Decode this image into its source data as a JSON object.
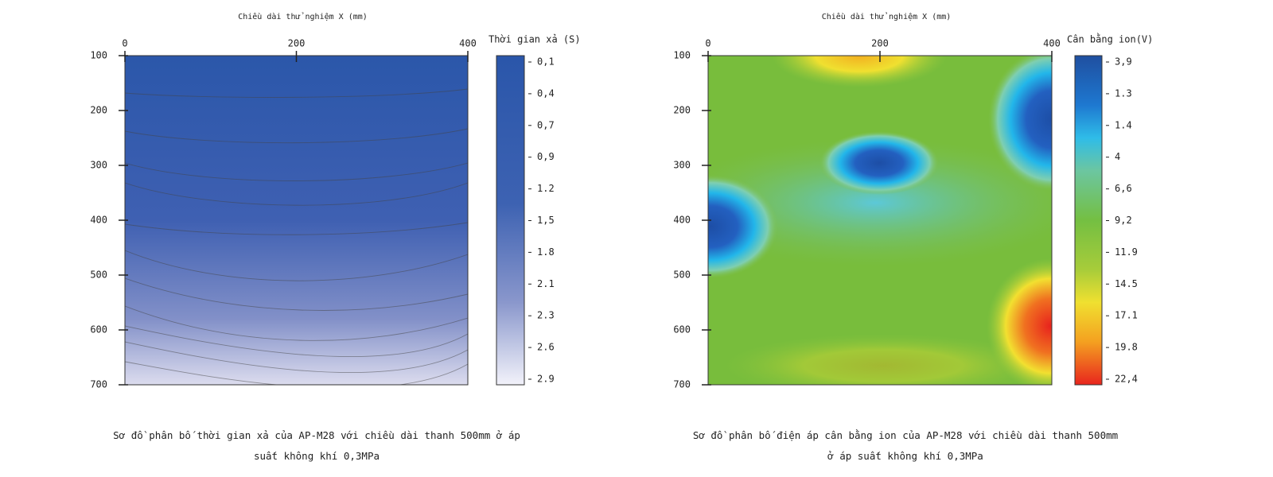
{
  "chart_data": [
    {
      "type": "contour",
      "title": "Chiều dài thử nghiệm X (mm)",
      "xlim": [
        0,
        400
      ],
      "xticks": [
        0,
        200,
        400
      ],
      "ylim": [
        100,
        700
      ],
      "yticks": [
        100,
        200,
        300,
        400,
        500,
        600,
        700
      ],
      "colorbar_title": "Thời gian xả (S)",
      "colorbar_ticks": [
        {
          "value": 0.1,
          "label": "0,1"
        },
        {
          "value": 0.4,
          "label": "0,4"
        },
        {
          "value": 0.7,
          "label": "0,7"
        },
        {
          "value": 0.9,
          "label": "0,9"
        },
        {
          "value": 1.2,
          "label": "1.2"
        },
        {
          "value": 1.5,
          "label": "1,5"
        },
        {
          "value": 1.8,
          "label": "1.8"
        },
        {
          "value": 2.1,
          "label": "2.1"
        },
        {
          "value": 2.3,
          "label": "2.3"
        },
        {
          "value": 2.6,
          "label": "2.6"
        },
        {
          "value": 2.9,
          "label": "2.9"
        }
      ],
      "caption": "Sơ đồ phân bố thời gian xả của AP-M28 với chiều dài thanh 500mm ở áp suất không khí 0,3MPa"
    },
    {
      "type": "contour",
      "title": "Chiều dài thử nghiệm X (mm)",
      "xlim": [
        0,
        400
      ],
      "xticks": [
        0,
        200,
        400
      ],
      "ylim": [
        100,
        700
      ],
      "yticks": [
        100,
        200,
        300,
        400,
        500,
        600,
        700
      ],
      "colorbar_title": "Cân bằng ion(V)",
      "colorbar_ticks": [
        {
          "value": 3.9,
          "label": "3,9"
        },
        1.3,
        1.4,
        4.0,
        {
          "value": 6.6,
          "label": "6,6"
        },
        {
          "value": 9.2,
          "label": "9,2"
        },
        11.9,
        14.5,
        17.1,
        19.8,
        {
          "value": 22.4,
          "label": "22,4"
        }
      ],
      "caption": "Sơ đồ phân bố điện áp cân bằng ion của AP-M28 với chiều dài thanh 500mm ở áp suất không khí 0,3MPa"
    }
  ]
}
